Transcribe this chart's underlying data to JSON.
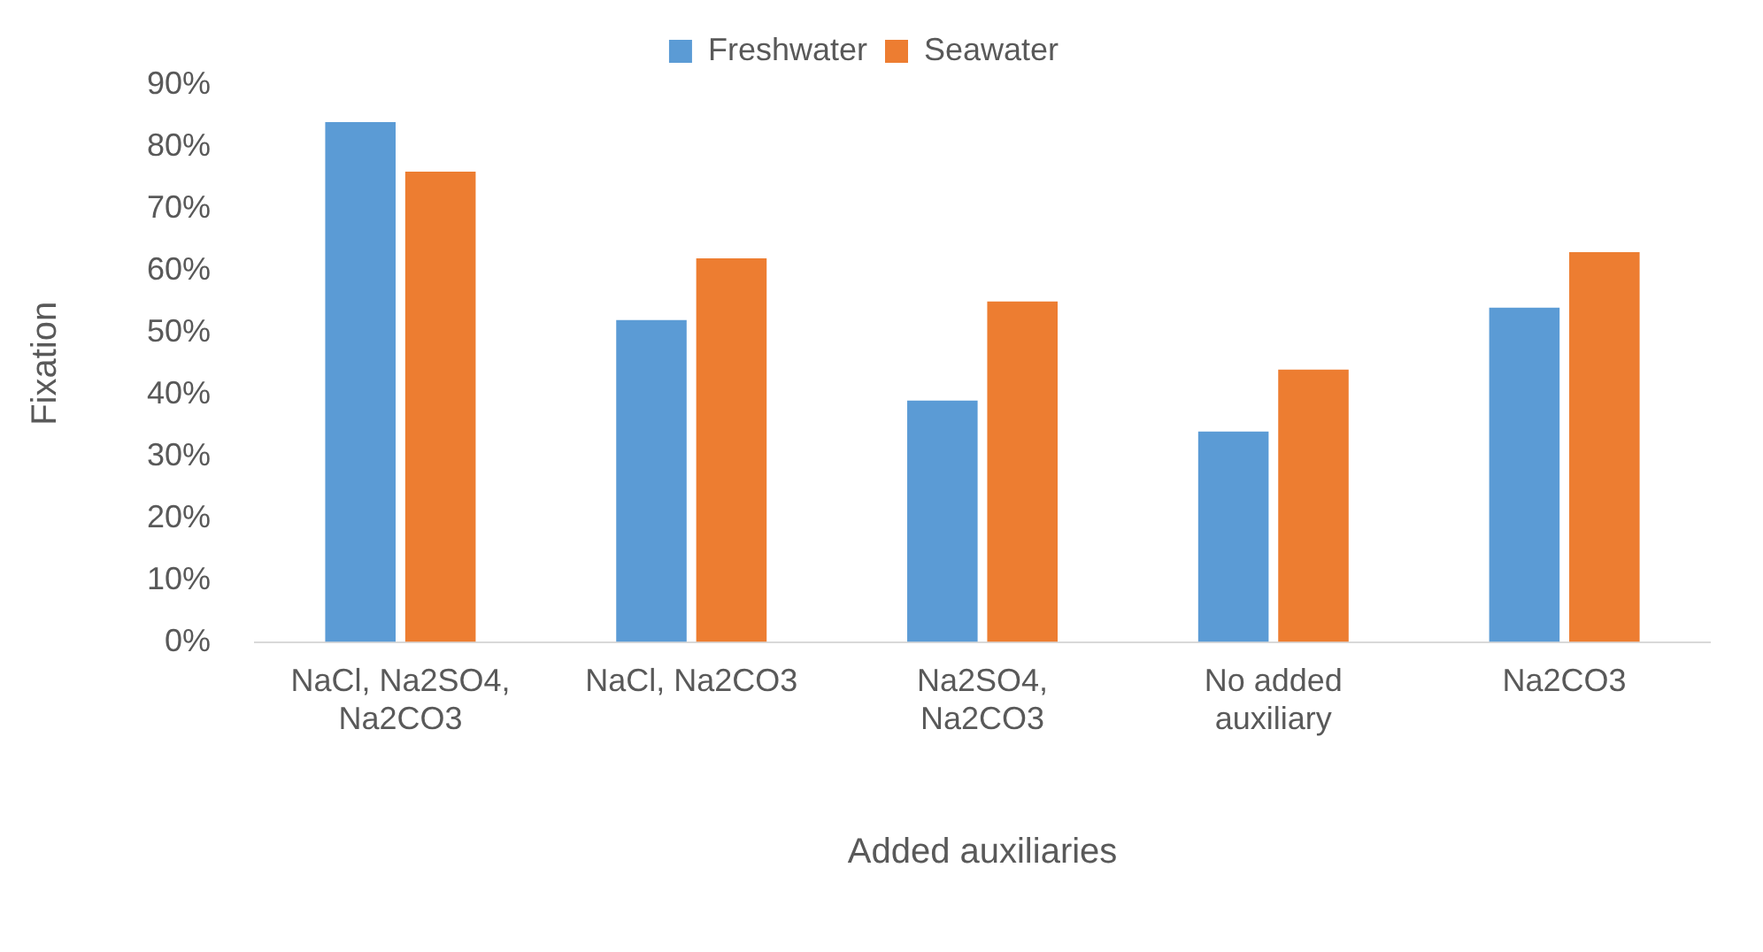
{
  "chart_data": {
    "type": "bar",
    "xlabel": "Added auxiliaries",
    "ylabel": "Fixation",
    "categories": [
      "NaCl, Na2SO4, Na2CO3",
      "NaCl, Na2CO3",
      "Na2SO4, Na2CO3",
      "No added auxiliary",
      "Na2CO3"
    ],
    "series": [
      {
        "name": "Freshwater",
        "color": "#5b9bd5",
        "values": [
          84,
          52,
          39,
          34,
          54
        ]
      },
      {
        "name": "Seawater",
        "color": "#ed7d31",
        "values": [
          76,
          62,
          55,
          44,
          63
        ]
      }
    ],
    "ylim": [
      0,
      90
    ],
    "yticks": [
      {
        "value": 0,
        "label": "0%"
      },
      {
        "value": 10,
        "label": "10%"
      },
      {
        "value": 20,
        "label": "20%"
      },
      {
        "value": 30,
        "label": "30%"
      },
      {
        "value": 40,
        "label": "40%"
      },
      {
        "value": 50,
        "label": "50%"
      },
      {
        "value": 60,
        "label": "60%"
      },
      {
        "value": 70,
        "label": "70%"
      },
      {
        "value": 80,
        "label": "80%"
      },
      {
        "value": 90,
        "label": "90%"
      }
    ],
    "grid": false,
    "legend": "top"
  }
}
